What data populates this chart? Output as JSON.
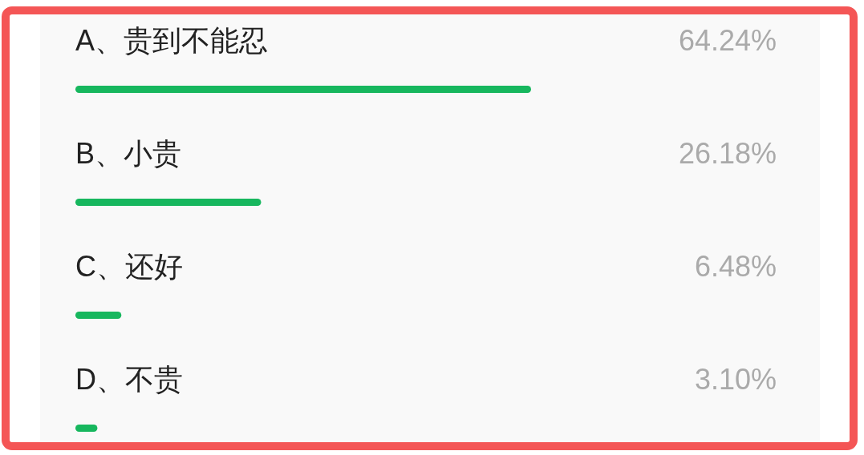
{
  "chart_data": {
    "type": "bar",
    "orientation": "horizontal",
    "categories": [
      "A、贵到不能忍",
      "B、小贵",
      "C、还好",
      "D、不贵"
    ],
    "values": [
      64.24,
      26.18,
      6.48,
      3.1
    ],
    "value_labels": [
      "64.24%",
      "26.18%",
      "6.48%",
      "3.10%"
    ],
    "color": "#17b75e",
    "tick_labels": "y"
  }
}
